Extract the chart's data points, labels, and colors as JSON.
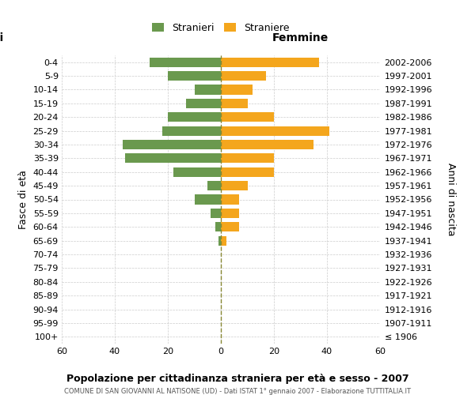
{
  "age_groups": [
    "100+",
    "95-99",
    "90-94",
    "85-89",
    "80-84",
    "75-79",
    "70-74",
    "65-69",
    "60-64",
    "55-59",
    "50-54",
    "45-49",
    "40-44",
    "35-39",
    "30-34",
    "25-29",
    "20-24",
    "15-19",
    "10-14",
    "5-9",
    "0-4"
  ],
  "birth_years": [
    "≤ 1906",
    "1907-1911",
    "1912-1916",
    "1917-1921",
    "1922-1926",
    "1927-1931",
    "1932-1936",
    "1937-1941",
    "1942-1946",
    "1947-1951",
    "1952-1956",
    "1957-1961",
    "1962-1966",
    "1967-1971",
    "1972-1976",
    "1977-1981",
    "1982-1986",
    "1987-1991",
    "1992-1996",
    "1997-2001",
    "2002-2006"
  ],
  "males": [
    0,
    0,
    0,
    0,
    0,
    0,
    0,
    1,
    2,
    4,
    10,
    5,
    18,
    36,
    37,
    22,
    20,
    13,
    10,
    20,
    27
  ],
  "females": [
    0,
    0,
    0,
    0,
    0,
    0,
    0,
    2,
    7,
    7,
    7,
    10,
    20,
    20,
    35,
    41,
    20,
    10,
    12,
    17,
    37
  ],
  "male_color": "#6a994e",
  "female_color": "#f4a61d",
  "center_line_color": "#888833",
  "grid_color": "#cccccc",
  "background_color": "#ffffff",
  "title": "Popolazione per cittadinanza straniera per età e sesso - 2007",
  "subtitle": "COMUNE DI SAN GIOVANNI AL NATISONE (UD) - Dati ISTAT 1° gennaio 2007 - Elaborazione TUTTITALIA.IT",
  "xlabel_right": "Femmine",
  "ylabel_left": "Fasce di età",
  "ylabel_right": "Anni di nascita",
  "legend_male": "Stranieri",
  "legend_female": "Straniere",
  "xlim": 60
}
